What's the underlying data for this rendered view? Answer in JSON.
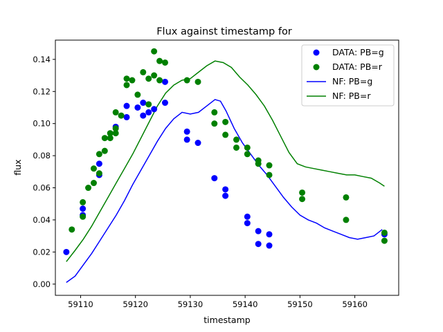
{
  "chart_data": {
    "type": "scatter",
    "title": "Flux against timestamp for",
    "xlabel": "timestamp",
    "ylabel": "flux",
    "xlim": [
      59105.4,
      59168.0
    ],
    "ylim": [
      -0.007,
      0.152
    ],
    "xticks": [
      59110,
      59120,
      59130,
      59140,
      59150,
      59160
    ],
    "yticks": [
      0.0,
      0.02,
      0.04,
      0.06,
      0.08,
      0.1,
      0.12,
      0.14
    ],
    "grid": false,
    "legend_position": "top-right",
    "colors": {
      "g": "#0000ff",
      "r": "#008000"
    },
    "legend": [
      {
        "label": "DATA: PB=g",
        "kind": "marker",
        "color": "#0000ff"
      },
      {
        "label": "DATA: PB=r",
        "kind": "marker",
        "color": "#008000"
      },
      {
        "label": "NF: PB=g",
        "kind": "line",
        "color": "#0000ff"
      },
      {
        "label": "NF: PB=r",
        "kind": "line",
        "color": "#008000"
      }
    ],
    "series": [
      {
        "name": "DATA: PB=g",
        "kind": "scatter",
        "color": "#0000ff",
        "points": [
          [
            59107.4,
            0.02
          ],
          [
            59110.4,
            0.047
          ],
          [
            59110.4,
            0.043
          ],
          [
            59113.4,
            0.075
          ],
          [
            59113.4,
            0.068
          ],
          [
            59116.4,
            0.098
          ],
          [
            59118.4,
            0.111
          ],
          [
            59118.4,
            0.104
          ],
          [
            59120.4,
            0.11
          ],
          [
            59121.4,
            0.113
          ],
          [
            59121.4,
            0.105
          ],
          [
            59122.4,
            0.107
          ],
          [
            59123.4,
            0.109
          ],
          [
            59125.4,
            0.126
          ],
          [
            59125.4,
            0.113
          ],
          [
            59129.4,
            0.095
          ],
          [
            59129.4,
            0.09
          ],
          [
            59131.4,
            0.088
          ],
          [
            59134.4,
            0.066
          ],
          [
            59136.4,
            0.059
          ],
          [
            59136.4,
            0.055
          ],
          [
            59140.4,
            0.042
          ],
          [
            59140.4,
            0.038
          ],
          [
            59142.4,
            0.033
          ],
          [
            59142.4,
            0.025
          ],
          [
            59144.4,
            0.031
          ],
          [
            59144.4,
            0.024
          ],
          [
            59165.4,
            0.031
          ]
        ]
      },
      {
        "name": "DATA: PB=r",
        "kind": "scatter",
        "color": "#008000",
        "points": [
          [
            59108.4,
            0.034
          ],
          [
            59110.4,
            0.051
          ],
          [
            59110.4,
            0.042
          ],
          [
            59111.4,
            0.06
          ],
          [
            59112.4,
            0.072
          ],
          [
            59112.4,
            0.063
          ],
          [
            59113.4,
            0.081
          ],
          [
            59113.4,
            0.069
          ],
          [
            59114.4,
            0.091
          ],
          [
            59114.4,
            0.083
          ],
          [
            59115.4,
            0.094
          ],
          [
            59115.4,
            0.091
          ],
          [
            59116.4,
            0.107
          ],
          [
            59116.4,
            0.097
          ],
          [
            59116.4,
            0.094
          ],
          [
            59117.4,
            0.105
          ],
          [
            59118.4,
            0.124
          ],
          [
            59118.4,
            0.128
          ],
          [
            59119.4,
            0.127
          ],
          [
            59120.4,
            0.118
          ],
          [
            59121.4,
            0.132
          ],
          [
            59122.4,
            0.128
          ],
          [
            59122.4,
            0.112
          ],
          [
            59123.4,
            0.145
          ],
          [
            59123.4,
            0.13
          ],
          [
            59124.4,
            0.139
          ],
          [
            59124.4,
            0.127
          ],
          [
            59125.4,
            0.138
          ],
          [
            59129.4,
            0.127
          ],
          [
            59131.4,
            0.126
          ],
          [
            59134.4,
            0.107
          ],
          [
            59134.4,
            0.1
          ],
          [
            59136.4,
            0.101
          ],
          [
            59136.4,
            0.093
          ],
          [
            59138.4,
            0.09
          ],
          [
            59138.4,
            0.085
          ],
          [
            59140.4,
            0.085
          ],
          [
            59140.4,
            0.081
          ],
          [
            59142.4,
            0.077
          ],
          [
            59142.4,
            0.075
          ],
          [
            59144.4,
            0.074
          ],
          [
            59144.4,
            0.068
          ],
          [
            59150.4,
            0.057
          ],
          [
            59150.4,
            0.053
          ],
          [
            59158.4,
            0.054
          ],
          [
            59158.4,
            0.04
          ],
          [
            59165.4,
            0.032
          ],
          [
            59165.4,
            0.027
          ]
        ]
      },
      {
        "name": "NF: PB=g",
        "kind": "line",
        "color": "#0000ff",
        "points": [
          [
            59107.4,
            0.001
          ],
          [
            59109.0,
            0.005
          ],
          [
            59110.5,
            0.012
          ],
          [
            59112.0,
            0.019
          ],
          [
            59113.5,
            0.027
          ],
          [
            59115.0,
            0.035
          ],
          [
            59116.5,
            0.043
          ],
          [
            59118.0,
            0.052
          ],
          [
            59119.5,
            0.062
          ],
          [
            59121.0,
            0.071
          ],
          [
            59122.5,
            0.08
          ],
          [
            59124.0,
            0.089
          ],
          [
            59125.5,
            0.097
          ],
          [
            59127.0,
            0.103
          ],
          [
            59128.5,
            0.107
          ],
          [
            59130.0,
            0.106
          ],
          [
            59131.5,
            0.107
          ],
          [
            59133.0,
            0.111
          ],
          [
            59134.5,
            0.115
          ],
          [
            59135.5,
            0.114
          ],
          [
            59136.5,
            0.108
          ],
          [
            59138.0,
            0.097
          ],
          [
            59139.5,
            0.088
          ],
          [
            59141.0,
            0.081
          ],
          [
            59142.5,
            0.074
          ],
          [
            59144.0,
            0.068
          ],
          [
            59145.5,
            0.061
          ],
          [
            59147.0,
            0.054
          ],
          [
            59148.5,
            0.048
          ],
          [
            59150.0,
            0.043
          ],
          [
            59151.5,
            0.04
          ],
          [
            59153.0,
            0.038
          ],
          [
            59154.5,
            0.035
          ],
          [
            59156.0,
            0.033
          ],
          [
            59157.5,
            0.031
          ],
          [
            59159.0,
            0.029
          ],
          [
            59160.5,
            0.028
          ],
          [
            59162.0,
            0.029
          ],
          [
            59163.5,
            0.03
          ],
          [
            59165.0,
            0.034
          ]
        ]
      },
      {
        "name": "NF: PB=r",
        "kind": "line",
        "color": "#008000",
        "points": [
          [
            59107.4,
            0.014
          ],
          [
            59109.0,
            0.021
          ],
          [
            59110.5,
            0.028
          ],
          [
            59112.0,
            0.036
          ],
          [
            59113.5,
            0.045
          ],
          [
            59115.0,
            0.054
          ],
          [
            59116.5,
            0.063
          ],
          [
            59118.0,
            0.072
          ],
          [
            59119.5,
            0.081
          ],
          [
            59121.0,
            0.091
          ],
          [
            59122.5,
            0.101
          ],
          [
            59124.0,
            0.111
          ],
          [
            59125.5,
            0.119
          ],
          [
            59127.0,
            0.124
          ],
          [
            59128.5,
            0.127
          ],
          [
            59130.0,
            0.128
          ],
          [
            59131.5,
            0.132
          ],
          [
            59133.0,
            0.136
          ],
          [
            59134.5,
            0.139
          ],
          [
            59136.0,
            0.138
          ],
          [
            59137.5,
            0.135
          ],
          [
            59139.0,
            0.129
          ],
          [
            59140.5,
            0.124
          ],
          [
            59142.0,
            0.118
          ],
          [
            59143.5,
            0.111
          ],
          [
            59145.0,
            0.102
          ],
          [
            59146.5,
            0.092
          ],
          [
            59148.0,
            0.082
          ],
          [
            59149.5,
            0.075
          ],
          [
            59151.0,
            0.073
          ],
          [
            59152.5,
            0.072
          ],
          [
            59154.0,
            0.071
          ],
          [
            59155.5,
            0.07
          ],
          [
            59157.0,
            0.069
          ],
          [
            59158.5,
            0.068
          ],
          [
            59160.0,
            0.068
          ],
          [
            59161.5,
            0.067
          ],
          [
            59163.0,
            0.066
          ],
          [
            59164.5,
            0.063
          ],
          [
            59165.4,
            0.061
          ]
        ]
      }
    ]
  }
}
